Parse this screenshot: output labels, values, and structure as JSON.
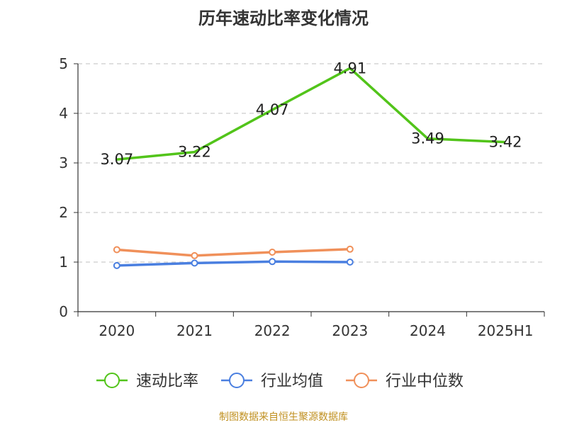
{
  "title": "历年速动比率变化情况",
  "source": "制图数据来自恒生聚源数据库",
  "chart_data": {
    "type": "line",
    "title": "历年速动比率变化情况",
    "categories": [
      "2020",
      "2021",
      "2022",
      "2023",
      "2024",
      "2025H1"
    ],
    "ylim": [
      0,
      5
    ],
    "yticks": [
      0,
      1,
      2,
      3,
      4,
      5
    ],
    "grid": true,
    "legend_position": "bottom",
    "series": [
      {
        "name": "速动比率",
        "color": "#52c41a",
        "values": [
          3.07,
          3.22,
          4.07,
          4.91,
          3.49,
          3.42
        ],
        "labels": [
          "3.07",
          "3.22",
          "4.07",
          "4.91",
          "3.49",
          "3.42"
        ],
        "show_markers": false
      },
      {
        "name": "行业均值",
        "color": "#4a7fe0",
        "values": [
          0.93,
          0.98,
          1.01,
          1.0,
          null,
          null
        ],
        "show_markers": true
      },
      {
        "name": "行业中位数",
        "color": "#f0905a",
        "values": [
          1.25,
          1.13,
          1.2,
          1.26,
          null,
          null
        ],
        "show_markers": true
      }
    ]
  }
}
